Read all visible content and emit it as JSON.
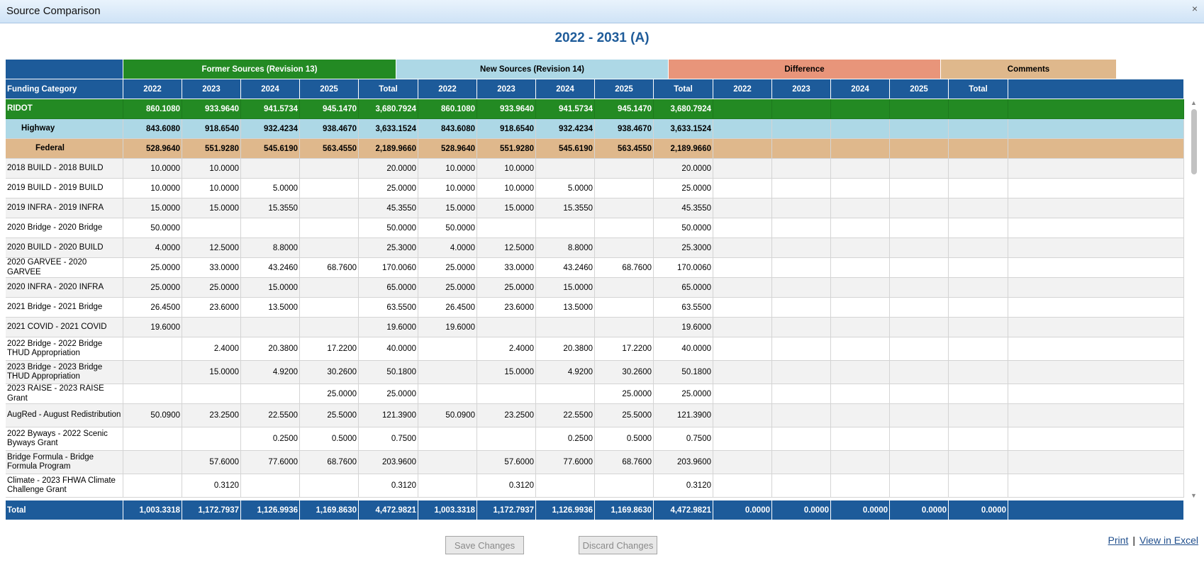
{
  "window": {
    "title": "Source Comparison",
    "close": "×"
  },
  "heading": "2022 - 2031 (A)",
  "groups": {
    "former": "Former Sources (Revision 13)",
    "new": "New Sources (Revision 14)",
    "diff": "Difference",
    "comments": "Comments"
  },
  "colors": {
    "former": "#238a23",
    "new": "#add8e6",
    "diff": "#e8957a",
    "comments": "#dfb88c",
    "header": "#1d5b9a"
  },
  "columns": {
    "first": "Funding Category",
    "years": [
      "2022",
      "2023",
      "2024",
      "2025",
      "Total"
    ]
  },
  "rows": [
    {
      "label": "RIDOT",
      "level": 0,
      "former": [
        "860.1080",
        "933.9640",
        "941.5734",
        "945.1470",
        "3,680.7924"
      ],
      "new": [
        "860.1080",
        "933.9640",
        "941.5734",
        "945.1470",
        "3,680.7924"
      ]
    },
    {
      "label": "Highway",
      "level": 1,
      "former": [
        "843.6080",
        "918.6540",
        "932.4234",
        "938.4670",
        "3,633.1524"
      ],
      "new": [
        "843.6080",
        "918.6540",
        "932.4234",
        "938.4670",
        "3,633.1524"
      ]
    },
    {
      "label": "Federal",
      "level": 2,
      "former": [
        "528.9640",
        "551.9280",
        "545.6190",
        "563.4550",
        "2,189.9660"
      ],
      "new": [
        "528.9640",
        "551.9280",
        "545.6190",
        "563.4550",
        "2,189.9660"
      ]
    },
    {
      "label": "2018 BUILD - 2018 BUILD",
      "level": 3,
      "former": [
        "10.0000",
        "10.0000",
        "",
        "",
        "20.0000"
      ],
      "new": [
        "10.0000",
        "10.0000",
        "",
        "",
        "20.0000"
      ]
    },
    {
      "label": "2019 BUILD - 2019 BUILD",
      "level": 3,
      "former": [
        "10.0000",
        "10.0000",
        "5.0000",
        "",
        "25.0000"
      ],
      "new": [
        "10.0000",
        "10.0000",
        "5.0000",
        "",
        "25.0000"
      ]
    },
    {
      "label": "2019 INFRA - 2019 INFRA",
      "level": 3,
      "former": [
        "15.0000",
        "15.0000",
        "15.3550",
        "",
        "45.3550"
      ],
      "new": [
        "15.0000",
        "15.0000",
        "15.3550",
        "",
        "45.3550"
      ]
    },
    {
      "label": "2020 Bridge - 2020 Bridge",
      "level": 3,
      "former": [
        "50.0000",
        "",
        "",
        "",
        "50.0000"
      ],
      "new": [
        "50.0000",
        "",
        "",
        "",
        "50.0000"
      ]
    },
    {
      "label": "2020 BUILD - 2020 BUILD",
      "level": 3,
      "former": [
        "4.0000",
        "12.5000",
        "8.8000",
        "",
        "25.3000"
      ],
      "new": [
        "4.0000",
        "12.5000",
        "8.8000",
        "",
        "25.3000"
      ]
    },
    {
      "label": "2020 GARVEE - 2020 GARVEE",
      "level": 3,
      "former": [
        "25.0000",
        "33.0000",
        "43.2460",
        "68.7600",
        "170.0060"
      ],
      "new": [
        "25.0000",
        "33.0000",
        "43.2460",
        "68.7600",
        "170.0060"
      ]
    },
    {
      "label": "2020 INFRA - 2020 INFRA",
      "level": 3,
      "former": [
        "25.0000",
        "25.0000",
        "15.0000",
        "",
        "65.0000"
      ],
      "new": [
        "25.0000",
        "25.0000",
        "15.0000",
        "",
        "65.0000"
      ]
    },
    {
      "label": "2021 Bridge - 2021 Bridge",
      "level": 3,
      "former": [
        "26.4500",
        "23.6000",
        "13.5000",
        "",
        "63.5500"
      ],
      "new": [
        "26.4500",
        "23.6000",
        "13.5000",
        "",
        "63.5500"
      ]
    },
    {
      "label": "2021 COVID - 2021 COVID",
      "level": 3,
      "former": [
        "19.6000",
        "",
        "",
        "",
        "19.6000"
      ],
      "new": [
        "19.6000",
        "",
        "",
        "",
        "19.6000"
      ]
    },
    {
      "label": "2022 Bridge - 2022 Bridge THUD Appropriation",
      "level": 3,
      "tall": true,
      "former": [
        "",
        "2.4000",
        "20.3800",
        "17.2200",
        "40.0000"
      ],
      "new": [
        "",
        "2.4000",
        "20.3800",
        "17.2200",
        "40.0000"
      ]
    },
    {
      "label": "2023 Bridge - 2023 Bridge THUD Appropriation",
      "level": 3,
      "tall": true,
      "former": [
        "",
        "15.0000",
        "4.9200",
        "30.2600",
        "50.1800"
      ],
      "new": [
        "",
        "15.0000",
        "4.9200",
        "30.2600",
        "50.1800"
      ]
    },
    {
      "label": "2023 RAISE - 2023 RAISE Grant",
      "level": 3,
      "former": [
        "",
        "",
        "",
        "25.0000",
        "25.0000"
      ],
      "new": [
        "",
        "",
        "",
        "25.0000",
        "25.0000"
      ]
    },
    {
      "label": "AugRed - August Redistribution",
      "level": 3,
      "tall": true,
      "former": [
        "50.0900",
        "23.2500",
        "22.5500",
        "25.5000",
        "121.3900"
      ],
      "new": [
        "50.0900",
        "23.2500",
        "22.5500",
        "25.5000",
        "121.3900"
      ]
    },
    {
      "label": "2022 Byways - 2022 Scenic Byways Grant",
      "level": 3,
      "tall": true,
      "former": [
        "",
        "",
        "0.2500",
        "0.5000",
        "0.7500"
      ],
      "new": [
        "",
        "",
        "0.2500",
        "0.5000",
        "0.7500"
      ]
    },
    {
      "label": "Bridge Formula - Bridge Formula Program",
      "level": 3,
      "tall": true,
      "former": [
        "",
        "57.6000",
        "77.6000",
        "68.7600",
        "203.9600"
      ],
      "new": [
        "",
        "57.6000",
        "77.6000",
        "68.7600",
        "203.9600"
      ]
    },
    {
      "label": "Climate - 2023 FHWA Climate Challenge Grant",
      "level": 3,
      "tall": true,
      "former": [
        "",
        "0.3120",
        "",
        "",
        "0.3120"
      ],
      "new": [
        "",
        "0.3120",
        "",
        "",
        "0.3120"
      ]
    }
  ],
  "total": {
    "label": "Total",
    "former": [
      "1,003.3318",
      "1,172.7937",
      "1,126.9936",
      "1,169.8630",
      "4,472.9821"
    ],
    "new": [
      "1,003.3318",
      "1,172.7937",
      "1,126.9936",
      "1,169.8630",
      "4,472.9821"
    ],
    "diff": [
      "0.0000",
      "0.0000",
      "0.0000",
      "0.0000",
      "0.0000"
    ]
  },
  "buttons": {
    "save": "Save Changes",
    "discard": "Discard Changes"
  },
  "links": {
    "print": "Print",
    "sep": "|",
    "excel": "View in Excel"
  }
}
